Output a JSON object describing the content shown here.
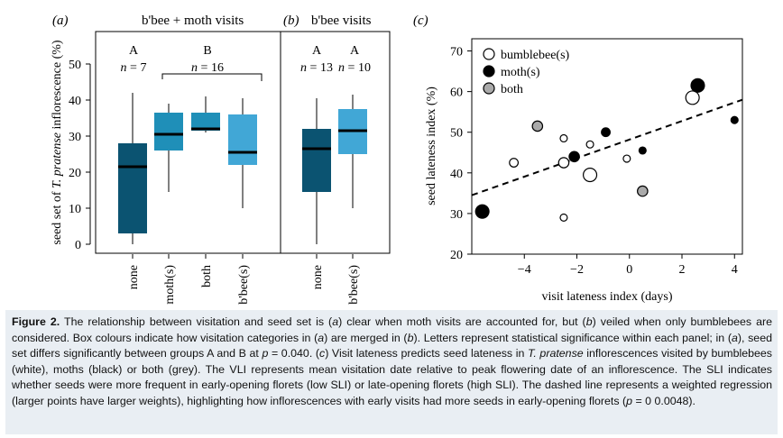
{
  "panels": {
    "a": {
      "label": "(a)",
      "title": "b'bee + moth visits"
    },
    "b": {
      "label": "(b)",
      "title": "b'bee visits"
    },
    "c": {
      "label": "(c)"
    }
  },
  "chart_data": [
    {
      "type": "box",
      "panel": "(a)",
      "title": "b'bee + moth visits",
      "ylabel": "seed set of T. pratense inflorescence (%)",
      "ylim": [
        0,
        50
      ],
      "yticks": [
        0,
        10,
        20,
        30,
        40,
        50
      ],
      "categories": [
        "none",
        "moth(s)",
        "both",
        "b'bee(s)"
      ],
      "colors": [
        "#0b5371",
        "#1f8fb8",
        "#1f8fb8",
        "#41a7d6"
      ],
      "boxes": [
        {
          "whisker_low": 0,
          "q1": 3,
          "median": 21.5,
          "q3": 28,
          "whisker_high": 42
        },
        {
          "whisker_low": 14.5,
          "q1": 26,
          "median": 30.5,
          "q3": 36.5,
          "whisker_high": 39
        },
        {
          "whisker_low": 31,
          "q1": 31.5,
          "median": 32,
          "q3": 36.5,
          "whisker_high": 41
        },
        {
          "whisker_low": 10,
          "q1": 22,
          "median": 25.5,
          "q3": 36,
          "whisker_high": 40.5
        }
      ],
      "groups": [
        {
          "letter": "A",
          "n": "n = 7"
        },
        {
          "letter": "B",
          "n": "n = 16"
        }
      ]
    },
    {
      "type": "box",
      "panel": "(b)",
      "title": "b'bee visits",
      "ylim": [
        0,
        50
      ],
      "categories": [
        "none",
        "b'bee(s)"
      ],
      "colors": [
        "#0b5371",
        "#41a7d6"
      ],
      "boxes": [
        {
          "whisker_low": 0,
          "q1": 14.5,
          "median": 26.5,
          "q3": 32,
          "whisker_high": 40.5
        },
        {
          "whisker_low": 10,
          "q1": 25,
          "median": 31.5,
          "q3": 37.5,
          "whisker_high": 41.5
        }
      ],
      "groups": [
        {
          "letter": "A",
          "n": "n = 13"
        },
        {
          "letter": "A",
          "n": "n = 10"
        }
      ]
    },
    {
      "type": "scatter",
      "panel": "(c)",
      "xlabel": "visit lateness index (days)",
      "ylabel": "seed lateness index (%)",
      "xlim": [
        -6,
        4.3
      ],
      "ylim": [
        20,
        73
      ],
      "xticks": [
        -4,
        -2,
        0,
        2,
        4
      ],
      "yticks": [
        20,
        30,
        40,
        50,
        60,
        70
      ],
      "legend": [
        {
          "name": "bumblebee(s)",
          "fill": "#ffffff"
        },
        {
          "name": "moth(s)",
          "fill": "#000000"
        },
        {
          "name": "both",
          "fill": "#aaaaaa"
        }
      ],
      "points": [
        {
          "x": -5.6,
          "y": 30.5,
          "cat": "moth(s)",
          "w": 3
        },
        {
          "x": -4.4,
          "y": 42.5,
          "cat": "bumblebee(s)",
          "w": 1.5
        },
        {
          "x": -3.5,
          "y": 51.5,
          "cat": "both",
          "w": 2
        },
        {
          "x": -2.5,
          "y": 29,
          "cat": "bumblebee(s)",
          "w": 1
        },
        {
          "x": -2.5,
          "y": 48.5,
          "cat": "bumblebee(s)",
          "w": 1
        },
        {
          "x": -2.5,
          "y": 42.5,
          "cat": "bumblebee(s)",
          "w": 2
        },
        {
          "x": -2.1,
          "y": 44,
          "cat": "moth(s)",
          "w": 2
        },
        {
          "x": -1.5,
          "y": 47,
          "cat": "bumblebee(s)",
          "w": 1
        },
        {
          "x": -1.5,
          "y": 39.5,
          "cat": "bumblebee(s)",
          "w": 3
        },
        {
          "x": -0.9,
          "y": 50,
          "cat": "moth(s)",
          "w": 1.5
        },
        {
          "x": -0.1,
          "y": 43.5,
          "cat": "bumblebee(s)",
          "w": 1
        },
        {
          "x": 0.5,
          "y": 45.5,
          "cat": "moth(s)",
          "w": 1
        },
        {
          "x": 0.5,
          "y": 35.5,
          "cat": "both",
          "w": 2
        },
        {
          "x": 2.4,
          "y": 58.5,
          "cat": "bumblebee(s)",
          "w": 3
        },
        {
          "x": 2.6,
          "y": 61.5,
          "cat": "moth(s)",
          "w": 3
        },
        {
          "x": 4,
          "y": 53,
          "cat": "moth(s)",
          "w": 1
        }
      ],
      "regression": {
        "style": "dashed",
        "x": [
          -6,
          4.3
        ],
        "y": [
          34.5,
          58
        ]
      }
    }
  ],
  "caption": {
    "label": "Figure 2.",
    "text_1": " The relationship between visitation and seed set is (",
    "t_a1": "a",
    "text_2": ") clear when moth visits are accounted for, but (",
    "t_b1": "b",
    "text_3": ") veiled when only bumblebees are considered. Box colours indicate how visitation categories in (",
    "t_a2": "a",
    "text_4": ") are merged in (",
    "t_b2": "b",
    "text_5": "). Letters represent statistical significance within each panel; in (",
    "t_a3": "a",
    "text_6": "), seed set differs significantly between groups A and B at ",
    "t_p1": "p",
    "text_7": " = 0.040. (",
    "t_c1": "c",
    "text_8": ") Visit lateness predicts seed lateness in ",
    "t_sp": "T. pratense",
    "text_9": " inflorescences visited by bumblebees (white), moths (black) or both (grey). The VLI represents mean visitation date relative to peak flowering date of an inflorescence. The SLI indicates whether seeds were more frequent in early-opening florets (low SLI) or late-opening florets (high SLI). The dashed line represents a weighted regression (larger points have larger weights), highlighting how inflorescences with early visits had more seeds in early-opening florets (",
    "t_p2": "p",
    "text_10": " = 0 0.0048)."
  }
}
